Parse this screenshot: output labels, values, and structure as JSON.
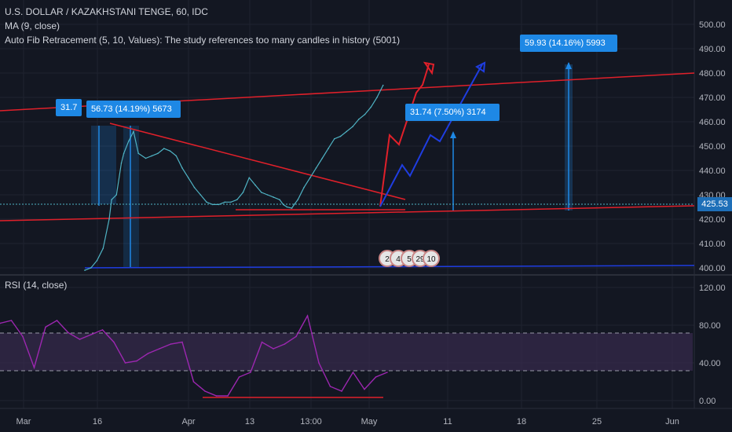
{
  "header": {
    "title": "U.S. DOLLAR / KAZAKHSTANI TENGE, 60, IDC",
    "ma_label": "MA (9, close)",
    "fib_label": "Auto Fib Retracement (5, 10, Values): The study references too many candles in history (5001)"
  },
  "rsi_label": "RSI (14, close)",
  "price_tag": "425.53",
  "measure_labels": [
    "31.7",
    "56.73 (14.19%) 5673",
    "31.74 (7.50%) 3174",
    "59.93 (14.16%) 5993"
  ],
  "event_badges": [
    "2",
    "4",
    "5",
    "29",
    "10"
  ],
  "colors": {
    "background": "#131722",
    "price_line": "#4fb3c4",
    "trend_red": "#e0202a",
    "projection_blue": "#1f3de0",
    "measure_blue": "#1e88e5",
    "rsi_line": "#9c27b0",
    "rsi_band": "#3a2b52"
  },
  "chart_data": [
    {
      "type": "line",
      "name": "price",
      "y_axis_ticks": [
        "500.00",
        "490.00",
        "480.00",
        "470.00",
        "460.00",
        "450.00",
        "440.00",
        "430.00",
        "420.00",
        "410.00",
        "400.00"
      ],
      "x_axis_ticks": [
        "Mar",
        "16",
        "Apr",
        "13",
        "13:00",
        "May",
        "11",
        "18",
        "25",
        "Jun"
      ],
      "ylim": [
        400,
        500
      ],
      "x": [
        0,
        0.5,
        1,
        1.5,
        2,
        2.2,
        2.6,
        3,
        3.2,
        3.6,
        4,
        4.4,
        5,
        5.5,
        6,
        6.5,
        7,
        7.5,
        8,
        8.5,
        9,
        9.5,
        10,
        10.5,
        11,
        11.5,
        12,
        12.5,
        13,
        13.5,
        14,
        14.5,
        15,
        15.5,
        16,
        16.3,
        16.6,
        17,
        17.2,
        17.5,
        18,
        18.5,
        19,
        19.5,
        20,
        20.5,
        21,
        21.5,
        22,
        22.5,
        23,
        23.5,
        24,
        24.5
      ],
      "values": [
        399,
        400,
        403,
        408,
        420,
        428,
        430,
        443,
        447,
        452,
        456,
        447,
        445,
        446,
        447,
        449,
        448,
        446,
        441,
        437,
        433,
        430,
        427,
        426,
        426,
        427,
        427,
        428,
        431,
        437,
        434,
        431,
        430,
        429,
        428,
        426,
        425,
        424.5,
        426,
        428,
        433,
        437,
        441,
        445,
        449,
        453,
        454,
        456,
        458,
        461,
        463,
        466,
        470,
        475
      ]
    },
    {
      "type": "line",
      "name": "RSI",
      "y_axis_ticks": [
        "120.00",
        "80.00",
        "40.00",
        "0.00"
      ],
      "ylim": [
        0,
        120
      ],
      "band": [
        30,
        70
      ],
      "x": [
        0,
        0.5,
        1,
        1.5,
        2,
        2.5,
        3,
        3.5,
        4,
        4.5,
        5,
        5.5,
        6,
        6.5,
        7,
        7.5,
        8,
        8.5,
        9,
        9.5,
        10,
        10.5,
        11,
        11.5,
        12,
        12.5,
        13,
        13.5,
        14,
        14.5,
        15,
        15.5,
        16,
        16.5,
        17
      ],
      "values": [
        82,
        85,
        68,
        35,
        78,
        85,
        72,
        65,
        70,
        75,
        62,
        40,
        42,
        50,
        55,
        60,
        62,
        20,
        10,
        5,
        5,
        25,
        30,
        62,
        55,
        60,
        68,
        90,
        40,
        15,
        10,
        30,
        12,
        25,
        30
      ]
    }
  ]
}
